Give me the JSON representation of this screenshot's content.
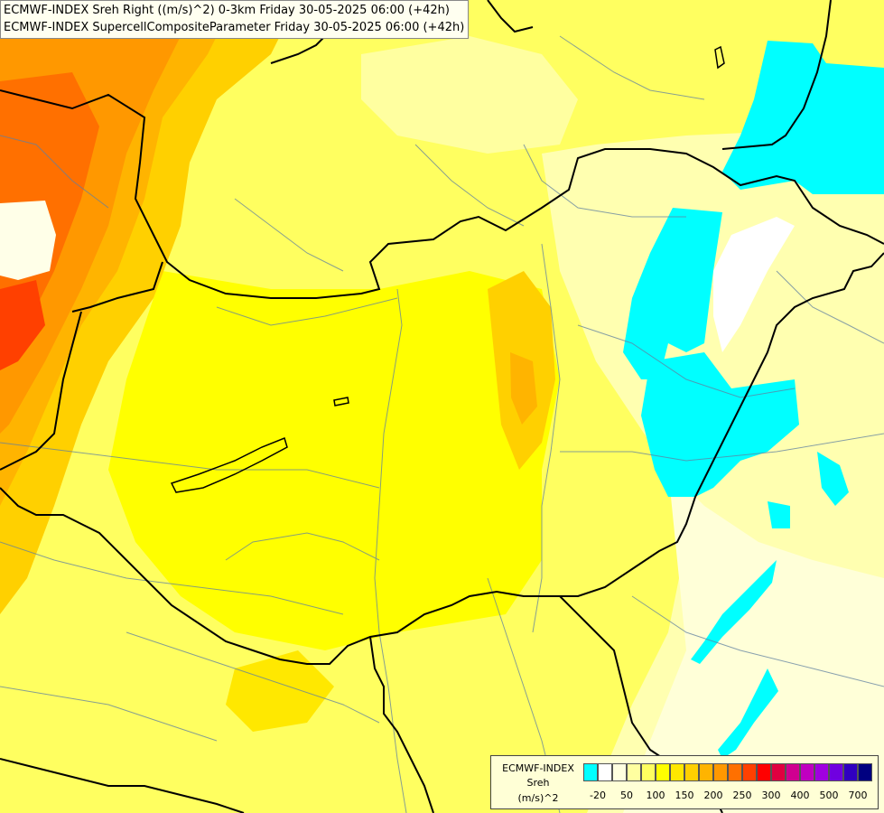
{
  "titles": {
    "line1": "ECMWF-INDEX Sreh Right ((m/s)^2) 0-3km Friday 30-05-2025 06:00 (+42h)",
    "line2": "ECMWF-INDEX SupercellCompositeParameter Friday 30-05-2025 06:00 (+42h)"
  },
  "legend": {
    "source": "ECMWF-INDEX",
    "variable": "Sreh",
    "unit": "(m/s)^2",
    "colors": [
      "#00ffff",
      "#ffffff",
      "#ffffe0",
      "#ffffa0",
      "#ffff60",
      "#ffff00",
      "#ffe800",
      "#ffd000",
      "#ffb400",
      "#ff9800",
      "#ff7000",
      "#ff4000",
      "#ff0000",
      "#e00040",
      "#d00090",
      "#c000c0",
      "#a000e0",
      "#7000e0",
      "#3000c0",
      "#000080"
    ],
    "tick_labels": [
      "-20",
      "50",
      "100",
      "150",
      "200",
      "250",
      "300",
      "400",
      "500",
      "700"
    ]
  }
}
